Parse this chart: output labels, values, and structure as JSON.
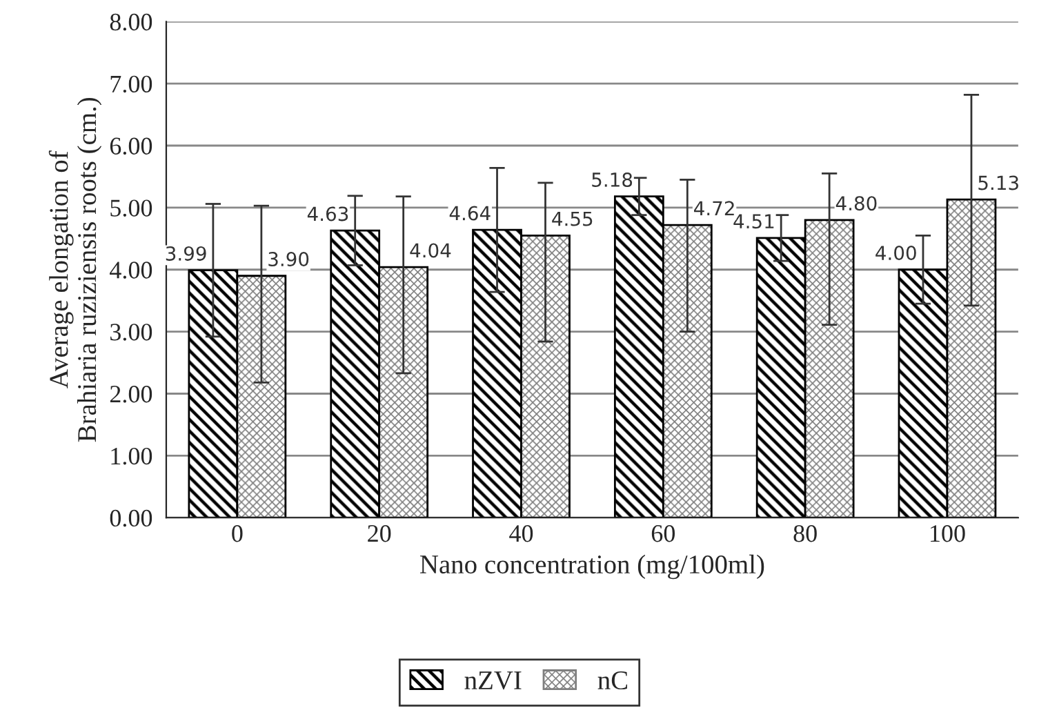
{
  "chart_data": {
    "type": "bar",
    "xlabel": "Nano concentration (mg/100ml)",
    "ylabel": "Average elongation of\nBrahiaria ruziziensis roots (cm.)",
    "categories": [
      "0",
      "20",
      "40",
      "60",
      "80",
      "100"
    ],
    "series": [
      {
        "name": "nZVI",
        "color": "#000000",
        "values": [
          3.99,
          4.63,
          4.64,
          5.18,
          4.51,
          4.0
        ],
        "value_labels": [
          "3.99",
          "4.63",
          "4.64",
          "5.18",
          "4.51",
          "4.00"
        ],
        "errors": [
          1.07,
          0.56,
          1.0,
          0.3,
          0.37,
          0.55
        ]
      },
      {
        "name": "nC",
        "color": "#7f7f7f",
        "values": [
          3.9,
          4.04,
          4.55,
          4.72,
          4.8,
          5.13
        ],
        "value_labels": [
          "3.90",
          "4.04",
          "4.55",
          "4.72",
          "4.80",
          "5.13"
        ],
        "errors": [
          [
            2.18,
            5.03
          ],
          [
            2.33,
            5.18
          ],
          [
            2.84,
            5.4
          ],
          [
            3.0,
            5.45
          ],
          [
            3.11,
            5.55
          ],
          [
            3.42,
            6.82
          ]
        ]
      }
    ],
    "ylim": [
      0,
      8
    ],
    "yticks": [
      {
        "value": 0,
        "label": "0.00"
      },
      {
        "value": 1,
        "label": "1.00"
      },
      {
        "value": 2,
        "label": "2.00"
      },
      {
        "value": 3,
        "label": "3.00"
      },
      {
        "value": 4,
        "label": "4.00"
      },
      {
        "value": 5,
        "label": "5.00"
      },
      {
        "value": 6,
        "label": "6.00"
      },
      {
        "value": 7,
        "label": "7.00"
      },
      {
        "value": 8,
        "label": "8.00"
      }
    ],
    "grid": "y",
    "legend": "bottom"
  }
}
